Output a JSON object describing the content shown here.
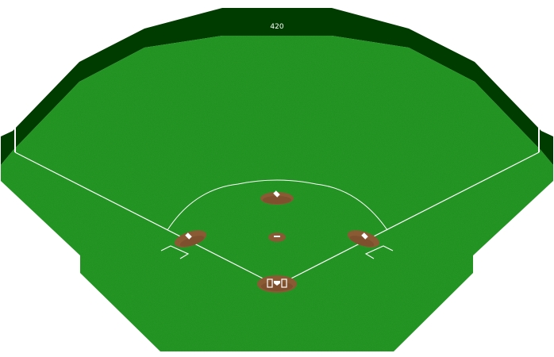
{
  "field": {
    "center_field_distance": "420",
    "colors": {
      "wall": "#003c00",
      "wall_edge": "#002a00",
      "grass": "#1e8c1e",
      "dirt": "#8a5a34",
      "dirt_dark": "#6e4426",
      "lines": "#ffffff",
      "bases": "#ffffff"
    }
  }
}
